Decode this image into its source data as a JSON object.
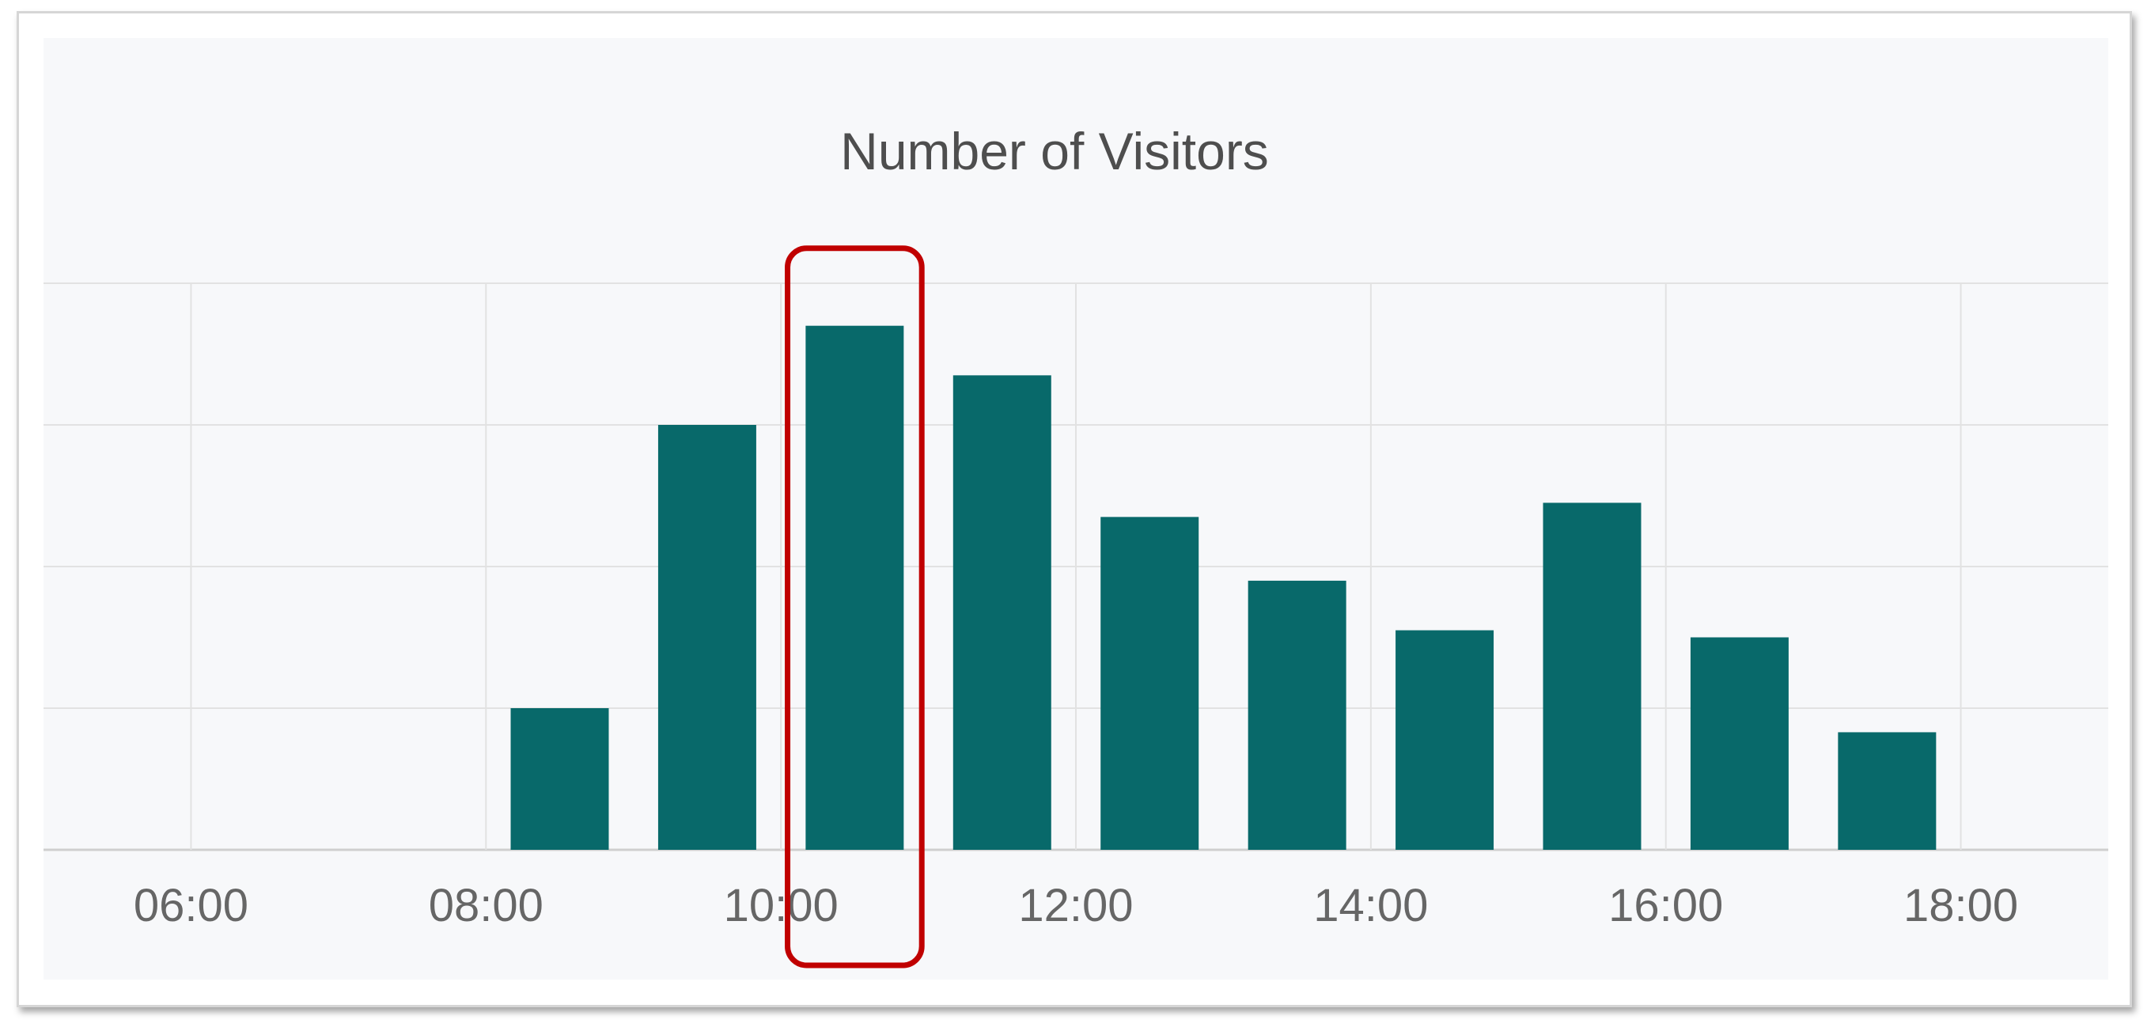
{
  "chart_data": {
    "type": "bar",
    "title": "Number of Visitors",
    "xlabel": "",
    "ylabel": "",
    "x_ticks": [
      "06:00",
      "08:00",
      "10:00",
      "12:00",
      "14:00",
      "16:00",
      "18:00"
    ],
    "categories": [
      "08:00",
      "09:00",
      "10:00",
      "11:00",
      "12:00",
      "13:00",
      "14:00",
      "15:00",
      "16:00",
      "17:00"
    ],
    "values": [
      1.0,
      3.0,
      3.7,
      3.35,
      2.35,
      1.9,
      1.55,
      2.45,
      1.5,
      0.83
    ],
    "ylim": [
      0,
      4
    ],
    "xlim": [
      "05:00",
      "19:00"
    ],
    "grid": true,
    "legend": "none",
    "bar_color": "#08696a",
    "highlight": {
      "category": "10:00",
      "color": "#c00000"
    }
  }
}
